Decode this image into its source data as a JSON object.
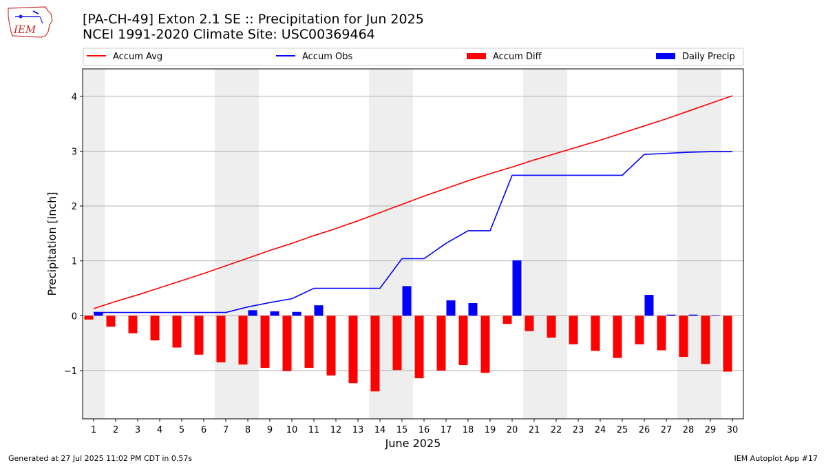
{
  "header": {
    "title_line1": "[PA-CH-49] Exton 2.1 SE :: Precipitation for Jun 2025",
    "title_line2": "NCEI 1991-2020 Climate Site: USC00369464",
    "logo_text": "IEM"
  },
  "footer": {
    "left": "Generated at 27 Jul 2025 11:02 PM CDT in 0.57s",
    "right": "IEM Autoplot App #17"
  },
  "colors": {
    "avg": "#ff0000",
    "obs": "#0000ff",
    "diff": "#ff0000",
    "daily": "#0000ff",
    "weekend_shade": "#eeeeee",
    "grid": "#b0b0b0"
  },
  "chart_data": {
    "type": "bar",
    "xlabel": "June 2025",
    "ylabel": "Precipitation [inch]",
    "ylim": [
      -1.88,
      4.5
    ],
    "yticks": [
      -1,
      0,
      1,
      2,
      3,
      4
    ],
    "ytick_labels": [
      "−1",
      "0",
      "1",
      "2",
      "3",
      "4"
    ],
    "xlim": [
      0.5,
      30.5
    ],
    "grid": "horizontal",
    "legend_position": "top",
    "legend": [
      "Accum Avg",
      "Accum Obs",
      "Accum Diff",
      "Daily Precip"
    ],
    "shaded_day_ranges": [
      [
        0.5,
        1.5
      ],
      [
        6.5,
        8.5
      ],
      [
        13.5,
        15.5
      ],
      [
        20.5,
        22.5
      ],
      [
        27.5,
        29.5
      ]
    ],
    "days": [
      1,
      2,
      3,
      4,
      5,
      6,
      7,
      8,
      9,
      10,
      11,
      12,
      13,
      14,
      15,
      16,
      17,
      18,
      19,
      20,
      21,
      22,
      23,
      24,
      25,
      26,
      27,
      28,
      29,
      30
    ],
    "series": [
      {
        "name": "Accum Avg",
        "kind": "line",
        "values": [
          0.13,
          0.26,
          0.38,
          0.51,
          0.64,
          0.77,
          0.91,
          1.05,
          1.19,
          1.32,
          1.46,
          1.59,
          1.73,
          1.88,
          2.03,
          2.18,
          2.32,
          2.46,
          2.59,
          2.71,
          2.84,
          2.96,
          3.08,
          3.2,
          3.33,
          3.46,
          3.59,
          3.73,
          3.87,
          4.01
        ]
      },
      {
        "name": "Accum Obs",
        "kind": "line",
        "values": [
          0.06,
          0.06,
          0.06,
          0.06,
          0.06,
          0.06,
          0.06,
          0.16,
          0.24,
          0.31,
          0.5,
          0.5,
          0.5,
          0.5,
          1.04,
          1.04,
          1.32,
          1.55,
          1.55,
          2.56,
          2.56,
          2.56,
          2.56,
          2.56,
          2.56,
          2.94,
          2.96,
          2.98,
          2.99,
          2.99
        ]
      },
      {
        "name": "Accum Diff",
        "kind": "bar",
        "values": [
          -0.07,
          -0.2,
          -0.32,
          -0.45,
          -0.58,
          -0.71,
          -0.85,
          -0.89,
          -0.95,
          -1.01,
          -0.95,
          -1.09,
          -1.23,
          -1.38,
          -0.99,
          -1.14,
          -1.0,
          -0.9,
          -1.04,
          -0.15,
          -0.28,
          -0.4,
          -0.52,
          -0.64,
          -0.77,
          -0.52,
          -0.63,
          -0.75,
          -0.88,
          -1.02
        ]
      },
      {
        "name": "Daily Precip",
        "kind": "bar",
        "values": [
          0.06,
          0,
          0,
          0,
          0,
          0,
          0,
          0.1,
          0.08,
          0.07,
          0.19,
          0,
          0,
          0,
          0.54,
          0,
          0.28,
          0.23,
          0,
          1.01,
          0,
          0,
          0,
          0,
          0,
          0.38,
          0.02,
          0.02,
          0.01,
          0
        ]
      }
    ]
  }
}
